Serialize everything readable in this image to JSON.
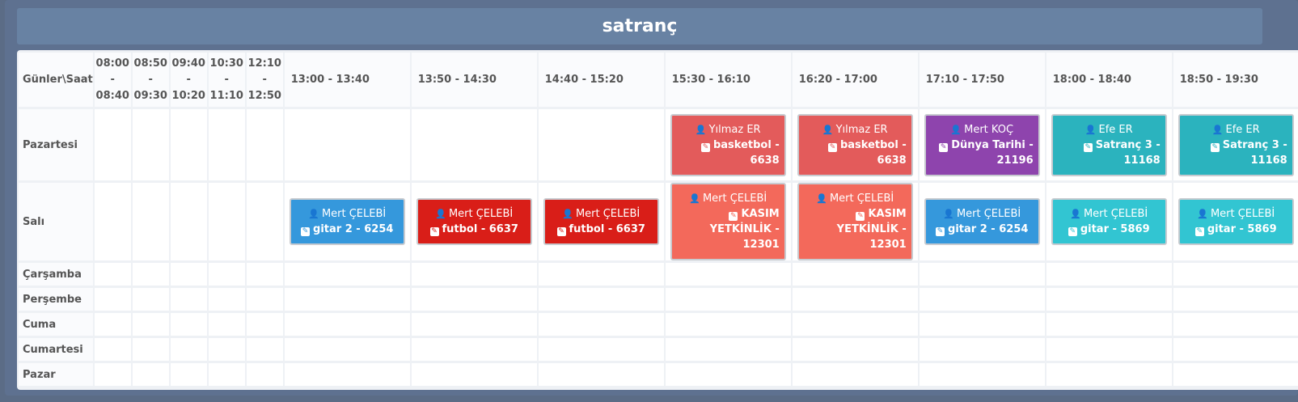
{
  "title": "satranç",
  "corner_label": "Günler\\Saat",
  "time_slots": [
    {
      "label": "08:00 - 08:40",
      "small": true
    },
    {
      "label": "08:50 - 09:30",
      "small": true
    },
    {
      "label": "09:40 - 10:20",
      "small": true
    },
    {
      "label": "10:30 - 11:10",
      "small": true
    },
    {
      "label": "12:10 - 12:50",
      "small": true
    },
    {
      "label": "13:00 - 13:40"
    },
    {
      "label": "13:50 - 14:30"
    },
    {
      "label": "14:40 - 15:20"
    },
    {
      "label": "15:30 - 16:10"
    },
    {
      "label": "16:20 - 17:00"
    },
    {
      "label": "17:10 - 17:50"
    },
    {
      "label": "18:00 - 18:40"
    },
    {
      "label": "18:50 - 19:30"
    }
  ],
  "days": [
    {
      "name": "Pazartesi",
      "lessons": {
        "8": {
          "teacher": "Yılmaz ER",
          "subject": "basketbol - 6638",
          "color": "#e35b5b"
        },
        "9": {
          "teacher": "Yılmaz ER",
          "subject": "basketbol - 6638",
          "color": "#e35b5b"
        },
        "10": {
          "teacher": "Mert KOÇ",
          "subject": "Dünya Tarihi - 21196",
          "color": "#8e44ad"
        },
        "11": {
          "teacher": "Efe ER",
          "subject": "Satranç 3 - 11168",
          "color": "#2bb3be"
        },
        "12": {
          "teacher": "Efe ER",
          "subject": "Satranç 3 - 11168",
          "color": "#2bb3be"
        }
      }
    },
    {
      "name": "Salı",
      "lessons": {
        "5": {
          "teacher": "Mert ÇELEBİ",
          "subject": "gitar 2 - 6254",
          "color": "#3598dc"
        },
        "6": {
          "teacher": "Mert ÇELEBİ",
          "subject": "futbol - 6637",
          "color": "#d91e18"
        },
        "7": {
          "teacher": "Mert ÇELEBİ",
          "subject": "futbol - 6637",
          "color": "#d91e18"
        },
        "8": {
          "teacher": "Mert ÇELEBİ",
          "subject": "KASIM YETKİNLİK - 12301",
          "color": "#f3695b"
        },
        "9": {
          "teacher": "Mert ÇELEBİ",
          "subject": "KASIM YETKİNLİK - 12301",
          "color": "#f3695b"
        },
        "10": {
          "teacher": "Mert ÇELEBİ",
          "subject": "gitar 2 - 6254",
          "color": "#3598dc"
        },
        "11": {
          "teacher": "Mert ÇELEBİ",
          "subject": "gitar - 5869",
          "color": "#32c5d2"
        },
        "12": {
          "teacher": "Mert ÇELEBİ",
          "subject": "gitar - 5869",
          "color": "#32c5d2"
        }
      }
    },
    {
      "name": "Çarşamba",
      "lessons": {}
    },
    {
      "name": "Perşembe",
      "lessons": {}
    },
    {
      "name": "Cuma",
      "lessons": {}
    },
    {
      "name": "Cumartesi",
      "lessons": {}
    },
    {
      "name": "Pazar",
      "lessons": {}
    }
  ],
  "icons": {
    "teacher": "user-tie-icon",
    "subject": "edit-icon"
  }
}
